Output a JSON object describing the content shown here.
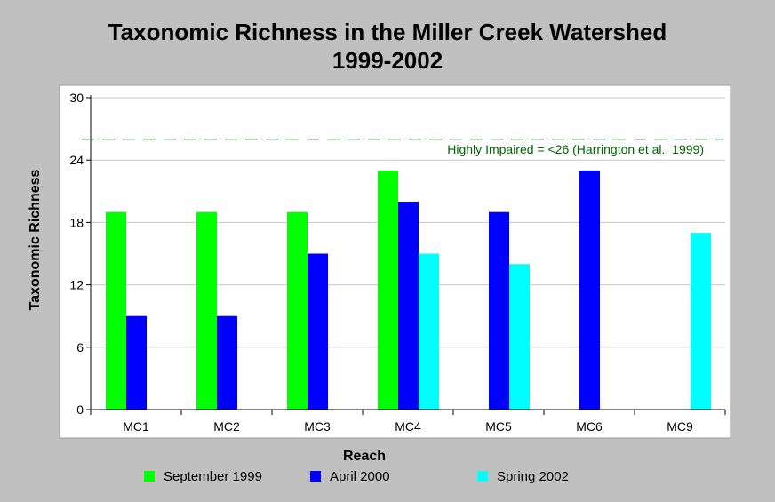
{
  "chart_data": {
    "type": "bar",
    "title": "Taxonomic Richness in the Miller Creek Watershed",
    "subtitle": "1999-2002",
    "xlabel": "Reach",
    "ylabel": "Taxonomic Richness",
    "ylim": [
      0,
      30
    ],
    "yticks": [
      "0",
      "6",
      "12",
      "18",
      "24",
      "30"
    ],
    "categories": [
      "MC1",
      "MC2",
      "MC3",
      "MC4",
      "MC5",
      "MC6",
      "MC9"
    ],
    "series": [
      {
        "name": "September 1999",
        "color": "#00ff00",
        "values": [
          19,
          19,
          19,
          23,
          null,
          null,
          null
        ]
      },
      {
        "name": "April 2000",
        "color": "#0000ff",
        "values": [
          9,
          9,
          15,
          20,
          19,
          23,
          null
        ]
      },
      {
        "name": "Spring 2002",
        "color": "#00ffff",
        "values": [
          null,
          null,
          null,
          15,
          14,
          null,
          17
        ]
      }
    ],
    "reference_line": {
      "value": 26,
      "label": "Highly Impaired = <26 (Harrington et al., 1999)",
      "color": "#006400",
      "style": "dashed"
    },
    "grid": true,
    "legend_position": "bottom"
  }
}
